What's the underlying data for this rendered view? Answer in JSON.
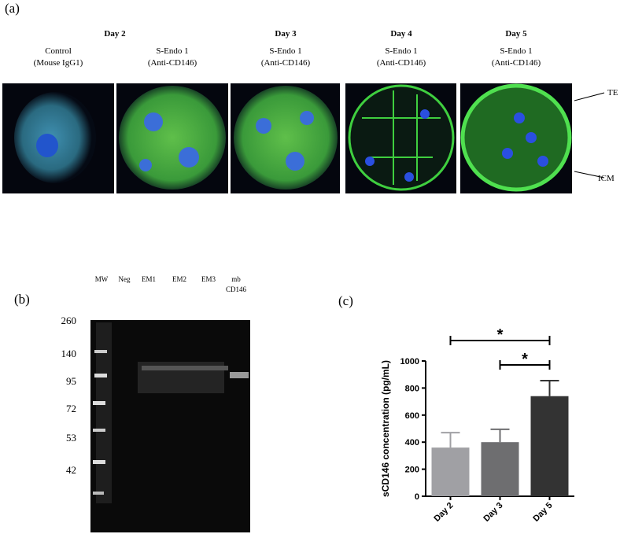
{
  "panel_a": {
    "label": "(a)",
    "days": [
      "Day 2",
      "Day 3",
      "Day 4",
      "Day 5"
    ],
    "conditions": [
      [
        "Control",
        "(Mouse IgG1)"
      ],
      [
        "S-Endo 1",
        "(Anti-CD146)"
      ],
      [
        "S-Endo 1",
        "(Anti-CD146)"
      ],
      [
        "S-Endo 1",
        "(Anti-CD146)"
      ],
      [
        "S-Endo 1",
        "(Anti-CD146)"
      ]
    ],
    "annotations": [
      "TE",
      "ICM"
    ]
  },
  "panel_b": {
    "label": "(b)",
    "lanes": [
      [
        "MW"
      ],
      [
        "Neg"
      ],
      [
        "EM1"
      ],
      [
        "EM2"
      ],
      [
        "EM3"
      ],
      [
        "mb",
        "CD146"
      ]
    ],
    "markers": [
      260,
      140,
      95,
      72,
      53,
      42
    ]
  },
  "chart_data": {
    "type": "bar",
    "label": "(c)",
    "ylabel": "sCD146 concentration (pg/mL)",
    "categories": [
      "Day 2",
      "Day 3",
      "Day 5"
    ],
    "series": [
      {
        "values": [
          360,
          400,
          740
        ],
        "errors": [
          110,
          95,
          115
        ],
        "colors": [
          "#a0a0a4",
          "#6e6e70",
          "#333333"
        ]
      }
    ],
    "ylim": [
      0,
      1000
    ],
    "yticks": [
      0,
      200,
      400,
      600,
      800,
      1000
    ],
    "significance": [
      {
        "between": [
          "Day 2",
          "Day 5"
        ],
        "label": "*"
      },
      {
        "between": [
          "Day 3",
          "Day 5"
        ],
        "label": "*"
      }
    ]
  }
}
